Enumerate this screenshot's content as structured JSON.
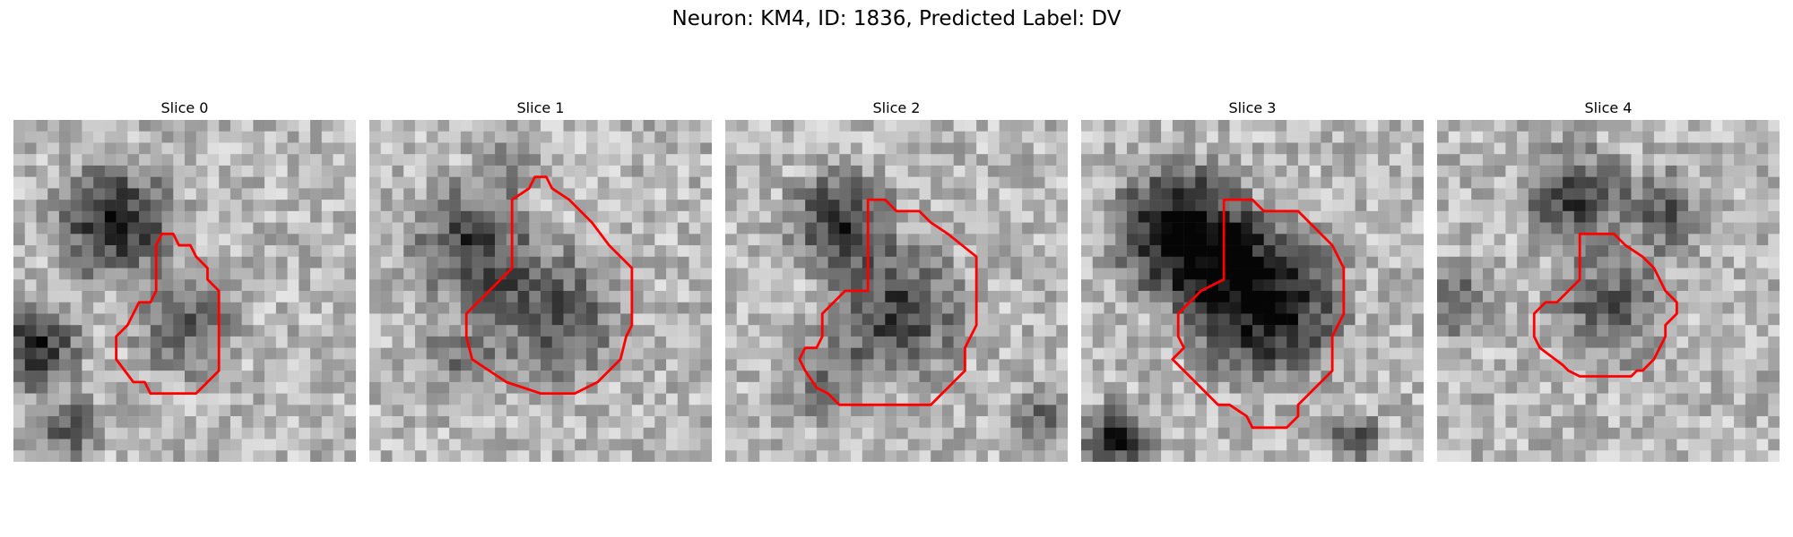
{
  "figure": {
    "title": "Neuron: KM4, ID: 1836, Predicted Label: DV",
    "contour_color": "#ff0000"
  },
  "panels": [
    {
      "title": "Slice 0",
      "image": "grayscale-microscopy-slice-with-red-roi-contour"
    },
    {
      "title": "Slice 1",
      "image": "grayscale-microscopy-slice-with-red-roi-contour"
    },
    {
      "title": "Slice 2",
      "image": "grayscale-microscopy-slice-with-red-roi-contour"
    },
    {
      "title": "Slice 3",
      "image": "grayscale-microscopy-slice-with-red-roi-contour"
    },
    {
      "title": "Slice 4",
      "image": "grayscale-microscopy-slice-with-red-roi-contour"
    }
  ]
}
